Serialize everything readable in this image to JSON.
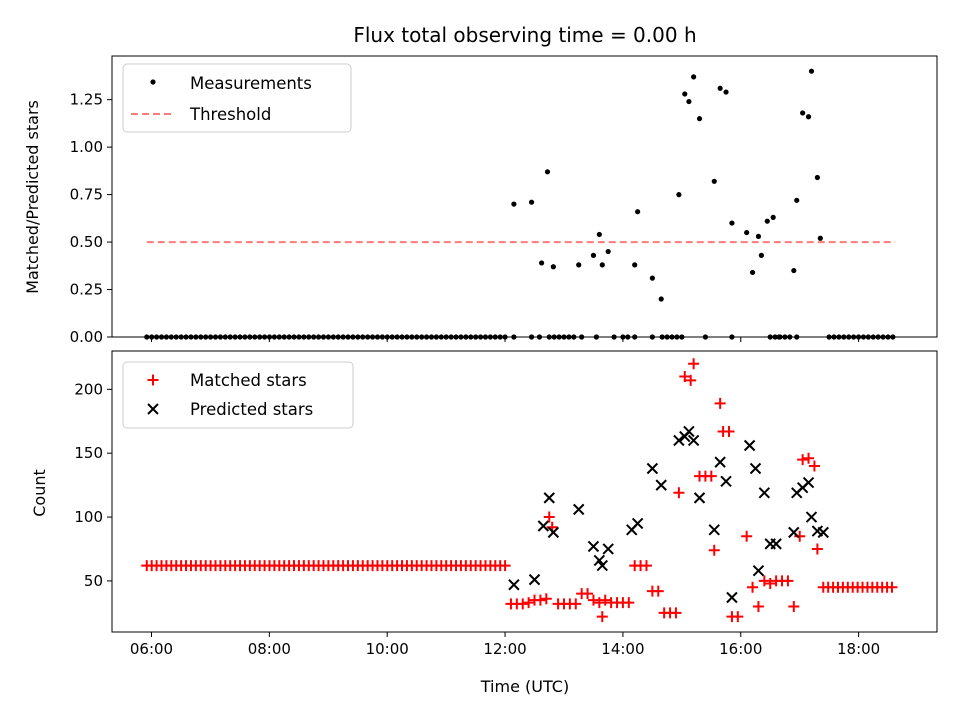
{
  "chart_data": [
    {
      "type": "scatter",
      "title": "Flux total observing time = 0.00 h",
      "xlabel": "",
      "ylabel": "Matched/Predicted stars",
      "xlim": [
        5.33,
        19.33
      ],
      "ylim": [
        0.0,
        1.48
      ],
      "yticks": [
        0.0,
        0.25,
        0.5,
        0.75,
        1.0,
        1.25
      ],
      "ytick_labels": [
        "0.00",
        "0.25",
        "0.50",
        "0.75",
        "1.00",
        "1.25"
      ],
      "legend_position": "top-left",
      "grid": false,
      "series": [
        {
          "name": "Measurements",
          "style": "dot",
          "color": "#000000",
          "zero_points": {
            "start": 5.92,
            "end": 18.62,
            "step": 0.0833,
            "exclude_ranges": [
              [
                12.05,
                12.55
              ],
              [
                12.6,
                12.82
              ],
              [
                13.25,
                14.0
              ],
              [
                14.15,
                14.62
              ],
              [
                14.95,
                16.45
              ],
              [
                16.85,
                17.42
              ]
            ]
          },
          "points": [
            [
              12.15,
              0.0
            ],
            [
              12.45,
              0.0
            ],
            [
              12.75,
              0.0
            ],
            [
              13.3,
              0.0
            ],
            [
              13.55,
              0.0
            ],
            [
              13.85,
              0.0
            ],
            [
              14.2,
              0.0
            ],
            [
              14.5,
              0.0
            ],
            [
              15.0,
              0.0
            ],
            [
              15.4,
              0.0
            ],
            [
              15.85,
              0.0
            ],
            [
              16.65,
              0.0
            ],
            [
              16.95,
              0.0
            ],
            [
              12.15,
              0.7
            ],
            [
              12.45,
              0.71
            ],
            [
              12.62,
              0.39
            ],
            [
              12.72,
              0.87
            ],
            [
              12.82,
              0.37
            ],
            [
              13.25,
              0.38
            ],
            [
              13.5,
              0.43
            ],
            [
              13.6,
              0.54
            ],
            [
              13.65,
              0.38
            ],
            [
              13.75,
              0.45
            ],
            [
              14.2,
              0.38
            ],
            [
              14.25,
              0.66
            ],
            [
              14.5,
              0.31
            ],
            [
              14.65,
              0.2
            ],
            [
              14.95,
              0.75
            ],
            [
              15.05,
              1.28
            ],
            [
              15.12,
              1.24
            ],
            [
              15.2,
              1.37
            ],
            [
              15.3,
              1.15
            ],
            [
              15.55,
              0.82
            ],
            [
              15.65,
              1.31
            ],
            [
              15.75,
              1.29
            ],
            [
              15.85,
              0.6
            ],
            [
              16.1,
              0.55
            ],
            [
              16.2,
              0.34
            ],
            [
              16.3,
              0.53
            ],
            [
              16.35,
              0.43
            ],
            [
              16.45,
              0.61
            ],
            [
              16.55,
              0.63
            ],
            [
              16.9,
              0.35
            ],
            [
              16.95,
              0.72
            ],
            [
              17.05,
              1.18
            ],
            [
              17.15,
              1.16
            ],
            [
              17.2,
              1.4
            ],
            [
              17.3,
              0.84
            ],
            [
              17.35,
              0.52
            ]
          ]
        },
        {
          "name": "Threshold",
          "style": "dashed-line",
          "color": "#ff7b7b",
          "points": [
            [
              5.92,
              0.5
            ],
            [
              18.62,
              0.5
            ]
          ]
        }
      ]
    },
    {
      "type": "scatter",
      "title": "",
      "xlabel": "Time (UTC)",
      "ylabel": "Count",
      "xlim": [
        5.33,
        19.33
      ],
      "ylim": [
        10,
        230
      ],
      "xticks": [
        6,
        8,
        10,
        12,
        14,
        16,
        18
      ],
      "xtick_labels": [
        "06:00",
        "08:00",
        "10:00",
        "12:00",
        "14:00",
        "16:00",
        "18:00"
      ],
      "yticks": [
        50,
        100,
        150,
        200
      ],
      "ytick_labels": [
        "50",
        "100",
        "150",
        "200"
      ],
      "legend_position": "top-left",
      "grid": false,
      "series": [
        {
          "name": "Matched stars",
          "style": "plus",
          "color": "#ff0000",
          "runs": [
            {
              "start": 5.92,
              "end": 12.05,
              "step": 0.0833,
              "y": 62
            },
            {
              "start": 17.4,
              "end": 18.62,
              "step": 0.0833,
              "y": 45
            }
          ],
          "points": [
            [
              12.1,
              32
            ],
            [
              12.2,
              32
            ],
            [
              12.3,
              32
            ],
            [
              12.4,
              33
            ],
            [
              12.5,
              35
            ],
            [
              12.6,
              35
            ],
            [
              12.7,
              36
            ],
            [
              12.75,
              100
            ],
            [
              12.8,
              92
            ],
            [
              12.9,
              32
            ],
            [
              13.0,
              32
            ],
            [
              13.1,
              32
            ],
            [
              13.2,
              32
            ],
            [
              13.3,
              40
            ],
            [
              13.4,
              40
            ],
            [
              13.5,
              35
            ],
            [
              13.6,
              33
            ],
            [
              13.65,
              22
            ],
            [
              13.7,
              35
            ],
            [
              13.8,
              33
            ],
            [
              13.9,
              33
            ],
            [
              14.0,
              33
            ],
            [
              14.1,
              33
            ],
            [
              14.2,
              62
            ],
            [
              14.3,
              62
            ],
            [
              14.4,
              62
            ],
            [
              14.5,
              42
            ],
            [
              14.6,
              42
            ],
            [
              14.7,
              25
            ],
            [
              14.8,
              25
            ],
            [
              14.9,
              25
            ],
            [
              14.95,
              119
            ],
            [
              15.05,
              210
            ],
            [
              15.15,
              207
            ],
            [
              15.2,
              220
            ],
            [
              15.3,
              132
            ],
            [
              15.4,
              132
            ],
            [
              15.5,
              132
            ],
            [
              15.55,
              74
            ],
            [
              15.65,
              189
            ],
            [
              15.7,
              167
            ],
            [
              15.8,
              167
            ],
            [
              15.85,
              22
            ],
            [
              15.95,
              22
            ],
            [
              16.1,
              85
            ],
            [
              16.2,
              45
            ],
            [
              16.3,
              30
            ],
            [
              16.4,
              50
            ],
            [
              16.5,
              48
            ],
            [
              16.6,
              50
            ],
            [
              16.7,
              50
            ],
            [
              16.8,
              50
            ],
            [
              16.9,
              30
            ],
            [
              17.0,
              85
            ],
            [
              17.05,
              145
            ],
            [
              17.15,
              146
            ],
            [
              17.25,
              140
            ],
            [
              17.3,
              75
            ]
          ]
        },
        {
          "name": "Predicted stars",
          "style": "x",
          "color": "#000000",
          "points": [
            [
              12.15,
              47
            ],
            [
              12.5,
              51
            ],
            [
              12.65,
              93
            ],
            [
              12.75,
              115
            ],
            [
              12.82,
              88
            ],
            [
              13.25,
              106
            ],
            [
              13.5,
              77
            ],
            [
              13.6,
              66
            ],
            [
              13.65,
              62
            ],
            [
              13.75,
              75
            ],
            [
              14.15,
              90
            ],
            [
              14.25,
              95
            ],
            [
              14.5,
              138
            ],
            [
              14.65,
              125
            ],
            [
              14.95,
              160
            ],
            [
              15.05,
              163
            ],
            [
              15.12,
              167
            ],
            [
              15.2,
              160
            ],
            [
              15.3,
              115
            ],
            [
              15.55,
              90
            ],
            [
              15.65,
              143
            ],
            [
              15.75,
              128
            ],
            [
              15.85,
              37
            ],
            [
              16.15,
              156
            ],
            [
              16.25,
              138
            ],
            [
              16.3,
              58
            ],
            [
              16.4,
              119
            ],
            [
              16.5,
              79
            ],
            [
              16.6,
              79
            ],
            [
              16.9,
              88
            ],
            [
              16.95,
              119
            ],
            [
              17.05,
              123
            ],
            [
              17.15,
              127
            ],
            [
              17.2,
              100
            ],
            [
              17.3,
              89
            ],
            [
              17.4,
              88
            ]
          ]
        }
      ]
    }
  ]
}
